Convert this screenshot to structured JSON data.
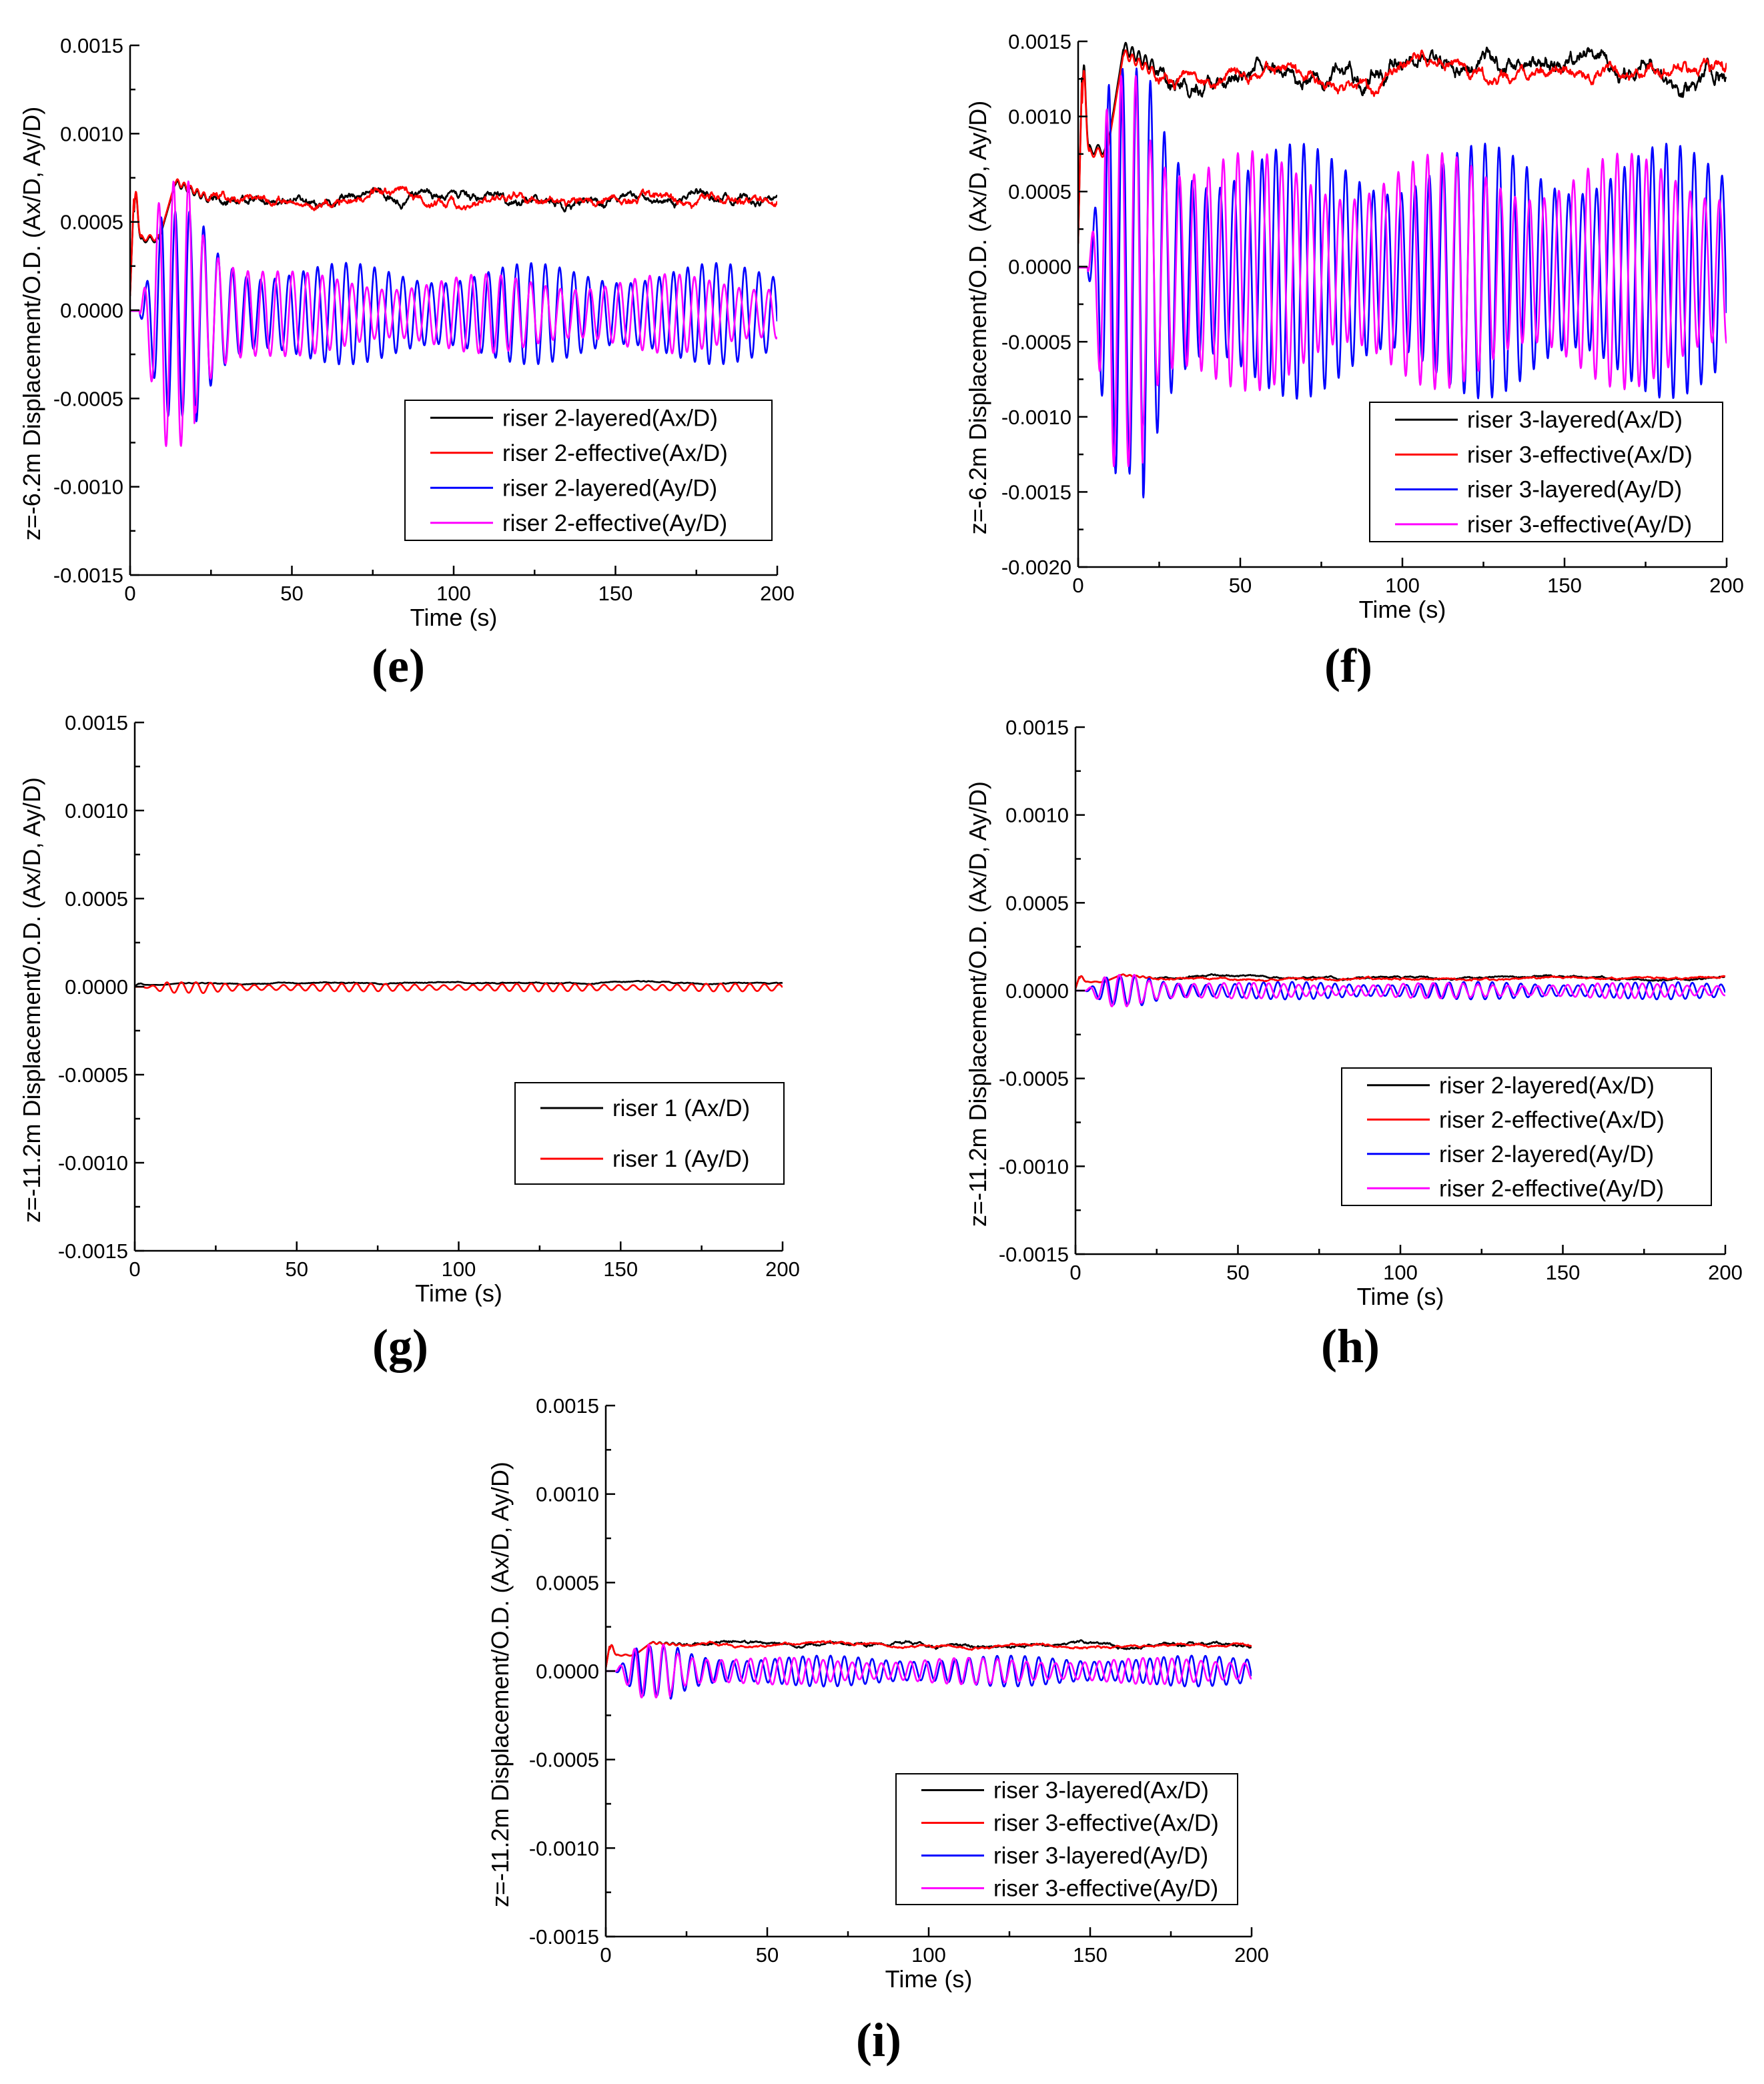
{
  "chart_data": [
    {
      "type": "line",
      "panel": "(e)",
      "letter": "e",
      "ylabel": "z=-6.2m Displacement/O.D. (Ax/D, Ay/D)",
      "xlabel": "Time (s)",
      "xlim": [
        0,
        200
      ],
      "ylim": [
        -0.0015,
        0.0015
      ],
      "xticks": [
        0,
        50,
        100,
        150,
        200
      ],
      "xtick_labels": [
        "0",
        "50",
        "100",
        "150",
        "200"
      ],
      "yticks": [
        -0.0015,
        -0.001,
        -0.0005,
        0,
        0.0005,
        0.001,
        0.0015
      ],
      "ytick_labels": [
        "-0.0015",
        "-0.0010",
        "-0.0005",
        "0.0000",
        "0.0005",
        "0.0010",
        "0.0015"
      ],
      "legend_position": "lower-right",
      "series": [
        {
          "name": "riser 2-layered(Ax/D)",
          "color": "#000000",
          "kind": "x",
          "base": 0.00062,
          "peak": 0.00072,
          "jump": 0.0004,
          "noise": 1.8e-05
        },
        {
          "name": "riser 2-effective(Ax/D)",
          "color": "#ff0000",
          "kind": "x",
          "base": 0.00063,
          "peak": 0.00073,
          "jump": 0.00041,
          "noise": 1.8e-05
        },
        {
          "name": "riser 2-layered(Ay/D)",
          "color": "#0000ff",
          "kind": "y",
          "amp_peak": 0.00058,
          "amp_late": 0.00023,
          "period": 4.4,
          "offset": -2e-05,
          "phase": 0.5
        },
        {
          "name": "riser 2-effective(Ay/D)",
          "color": "#ff00ff",
          "kind": "y",
          "amp_peak": 0.00075,
          "amp_late": 0.00018,
          "period": 4.6,
          "offset": -2e-05,
          "phase": 2.1
        }
      ]
    },
    {
      "type": "line",
      "panel": "(f)",
      "letter": "f",
      "ylabel": "z=-6.2m Displacement/O.D. (Ax/D, Ay/D)",
      "xlabel": "Time (s)",
      "xlim": [
        0,
        200
      ],
      "ylim": [
        -0.002,
        0.0015
      ],
      "xticks": [
        0,
        50,
        100,
        150,
        200
      ],
      "xtick_labels": [
        "0",
        "50",
        "100",
        "150",
        "200"
      ],
      "yticks": [
        -0.002,
        -0.0015,
        -0.001,
        -0.0005,
        0,
        0.0005,
        0.001,
        0.0015
      ],
      "ytick_labels": [
        "-0.0020",
        "-0.0015",
        "-0.0010",
        "-0.0005",
        "0.0000",
        "0.0005",
        "0.0010",
        "0.0015"
      ],
      "legend_position": "lower-right",
      "series": [
        {
          "name": "riser 3-layered(Ax/D)",
          "color": "#000000",
          "kind": "x",
          "base": 0.00131,
          "peak": 0.00146,
          "jump": 0.00078,
          "noise": 4e-05
        },
        {
          "name": "riser 3-effective(Ax/D)",
          "color": "#ff0000",
          "kind": "x",
          "base": 0.00127,
          "peak": 0.00142,
          "jump": 0.00076,
          "noise": 3e-05
        },
        {
          "name": "riser 3-layered(Ay/D)",
          "color": "#0000ff",
          "kind": "y",
          "amp_peak": 0.00135,
          "amp_late": 0.00068,
          "period": 4.3,
          "offset": -3e-05,
          "phase": 0.4
        },
        {
          "name": "riser 3-effective(Ay/D)",
          "color": "#ff00ff",
          "kind": "y",
          "amp_peak": 0.0013,
          "amp_late": 0.00063,
          "period": 4.5,
          "offset": -3e-05,
          "phase": 1.9
        }
      ]
    },
    {
      "type": "line",
      "panel": "(g)",
      "letter": "g",
      "ylabel": "z=-11.2m Displacement/O.D. (Ax/D, Ay/D)",
      "xlabel": "Time (s)",
      "xlim": [
        0,
        200
      ],
      "ylim": [
        -0.0015,
        0.0015
      ],
      "xticks": [
        0,
        50,
        100,
        150,
        200
      ],
      "xtick_labels": [
        "0",
        "50",
        "100",
        "150",
        "200"
      ],
      "yticks": [
        -0.0015,
        -0.001,
        -0.0005,
        0,
        0.0005,
        0.001,
        0.0015
      ],
      "ytick_labels": [
        "-0.0015",
        "-0.0010",
        "-0.0005",
        "0.0000",
        "0.0005",
        "0.0010",
        "0.0015"
      ],
      "legend_position": "lower-right",
      "series": [
        {
          "name": "riser 1 (Ax/D)",
          "color": "#000000",
          "kind": "x",
          "base": 2e-05,
          "peak": 2e-05,
          "jump": 1e-05,
          "noise": 2e-06
        },
        {
          "name": "riser 1 (Ay/D)",
          "color": "#ff0000",
          "kind": "y",
          "amp_peak": 3e-05,
          "amp_late": 1.8e-05,
          "period": 4.5,
          "offset": -5e-06,
          "phase": 0.3
        }
      ]
    },
    {
      "type": "line",
      "panel": "(h)",
      "letter": "h",
      "ylabel": "z=-11.2m Displacement/O.D. (Ax/D, Ay/D)",
      "xlabel": "Time (s)",
      "xlim": [
        0,
        200
      ],
      "ylim": [
        -0.0015,
        0.0015
      ],
      "xticks": [
        0,
        50,
        100,
        150,
        200
      ],
      "xtick_labels": [
        "0",
        "50",
        "100",
        "150",
        "200"
      ],
      "yticks": [
        -0.0015,
        -0.001,
        -0.0005,
        0,
        0.0005,
        0.001,
        0.0015
      ],
      "ytick_labels": [
        "-0.0015",
        "-0.0010",
        "-0.0005",
        "0.0000",
        "0.0005",
        "0.0010",
        "0.0015"
      ],
      "legend_position": "lower-right",
      "series": [
        {
          "name": "riser 2-layered(Ax/D)",
          "color": "#000000",
          "kind": "x",
          "base": 7e-05,
          "peak": 9e-05,
          "jump": 5e-05,
          "noise": 4e-06
        },
        {
          "name": "riser 2-effective(Ax/D)",
          "color": "#ff0000",
          "kind": "x",
          "base": 7e-05,
          "peak": 9e-05,
          "jump": 5e-05,
          "noise": 4e-06
        },
        {
          "name": "riser 2-layered(Ay/D)",
          "color": "#0000ff",
          "kind": "y",
          "amp_peak": 8e-05,
          "amp_late": 4e-05,
          "period": 4.4,
          "offset": 0.0,
          "phase": 0.6
        },
        {
          "name": "riser 2-effective(Ay/D)",
          "color": "#ff00ff",
          "kind": "y",
          "amp_peak": 9e-05,
          "amp_late": 3.5e-05,
          "period": 4.6,
          "offset": 0.0,
          "phase": 2.0
        }
      ]
    },
    {
      "type": "line",
      "panel": "(i)",
      "letter": "i",
      "ylabel": "z=-11.2m Displacement/O.D. (Ax/D, Ay/D)",
      "xlabel": "Time (s)",
      "xlim": [
        0,
        200
      ],
      "ylim": [
        -0.0015,
        0.0015
      ],
      "xticks": [
        0,
        50,
        100,
        150,
        200
      ],
      "xtick_labels": [
        "0",
        "50",
        "100",
        "150",
        "200"
      ],
      "yticks": [
        -0.0015,
        -0.001,
        -0.0005,
        0,
        0.0005,
        0.001,
        0.0015
      ],
      "ytick_labels": [
        "-0.0015",
        "-0.0010",
        "-0.0005",
        "0.0000",
        "0.0005",
        "0.0010",
        "0.0015"
      ],
      "legend_position": "lower-right",
      "series": [
        {
          "name": "riser 3-layered(Ax/D)",
          "color": "#000000",
          "kind": "x",
          "base": 0.00015,
          "peak": 0.00016,
          "jump": 9e-05,
          "noise": 6e-06
        },
        {
          "name": "riser 3-effective(Ax/D)",
          "color": "#ff0000",
          "kind": "x",
          "base": 0.000145,
          "peak": 0.00016,
          "jump": 9e-05,
          "noise": 5e-06
        },
        {
          "name": "riser 3-layered(Ay/D)",
          "color": "#0000ff",
          "kind": "y",
          "amp_peak": 0.00014,
          "amp_late": 7e-05,
          "period": 4.3,
          "offset": 0.0,
          "phase": 0.4
        },
        {
          "name": "riser 3-effective(Ay/D)",
          "color": "#ff00ff",
          "kind": "y",
          "amp_peak": 0.00015,
          "amp_late": 6e-05,
          "period": 4.5,
          "offset": 0.0,
          "phase": 1.8
        }
      ]
    }
  ]
}
